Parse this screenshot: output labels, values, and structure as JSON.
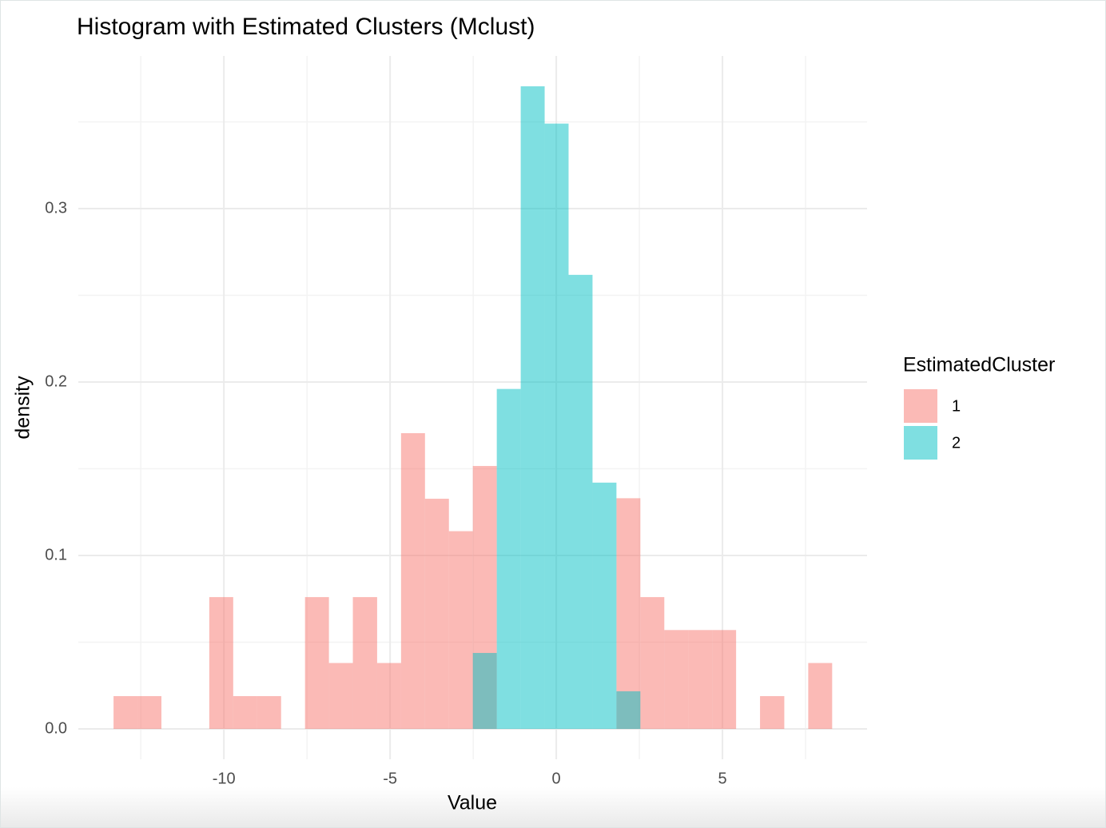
{
  "chart_data": {
    "type": "histogram",
    "title": "Histogram with Estimated Clusters (Mclust)",
    "x_label": "Value",
    "y_label": "density",
    "bins": [
      -13.32,
      -12.6,
      -11.88,
      -11.16,
      -10.44,
      -9.72,
      -9.0,
      -8.28,
      -7.56,
      -6.84,
      -6.12,
      -5.39,
      -4.67,
      -3.95,
      -3.23,
      -2.51,
      -1.79,
      -1.07,
      -0.35,
      0.37,
      1.09,
      1.81,
      2.53,
      3.25,
      3.97,
      4.69,
      5.41,
      6.13,
      6.86,
      7.58,
      8.3
    ],
    "series": [
      {
        "name": "1",
        "color": "#F8766D",
        "values": [
          0.0189,
          0.0189,
          0,
          0,
          0.076,
          0.0189,
          0.0189,
          0,
          0.076,
          0.038,
          0.076,
          0.038,
          0.1705,
          0.1327,
          0.114,
          0.1516,
          0,
          0,
          0,
          0,
          0,
          0.133,
          0.076,
          0.057,
          0.057,
          0.057,
          0,
          0.0189,
          0,
          0.038
        ]
      },
      {
        "name": "2",
        "color": "#00BFC4",
        "values": [
          0,
          0,
          0,
          0,
          0,
          0,
          0,
          0,
          0,
          0,
          0,
          0,
          0,
          0,
          0,
          0.0438,
          0.196,
          0.3705,
          0.349,
          0.2618,
          0.142,
          0.0217,
          0,
          0,
          0,
          0,
          0,
          0,
          0,
          0
        ]
      }
    ],
    "alpha": 0.5,
    "legend_title": "EstimatedCluster",
    "legend": "right",
    "xlim": [
      -14.38,
      9.35
    ],
    "xticks": [
      -10,
      -5,
      0,
      5
    ],
    "ylim": [
      -0.0175,
      0.388
    ],
    "yticks": [
      {
        "value": 0,
        "label": "0.0"
      },
      0.1,
      0.2,
      0.3
    ],
    "grid": true
  }
}
